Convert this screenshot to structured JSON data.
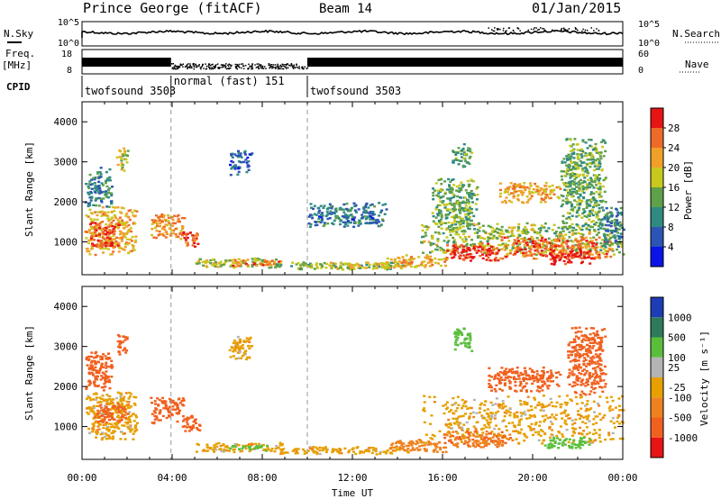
{
  "header": {
    "station": "Prince George (fitACF)",
    "beam": "Beam 14",
    "date": "01/Jan/2015"
  },
  "left_labels": {
    "nsky": "N.Sky",
    "freq_line1": "Freq.",
    "freq_line2": "[MHz]",
    "cpid": "CPID"
  },
  "right_labels": {
    "nsearch": "N.Search",
    "nave": "Nave"
  },
  "noise_panel": {
    "left_ticks": [
      "10^5",
      "10^0"
    ],
    "right_ticks": [
      "10^5",
      "10^0"
    ]
  },
  "freq_panel": {
    "left_ticks": [
      "18",
      "8"
    ],
    "right_ticks": [
      "60",
      "0"
    ]
  },
  "cpid_segments": [
    {
      "label": "twofsound 3503",
      "start_h": 0.0,
      "end_h": 3.95
    },
    {
      "label": "normal (fast) 151",
      "start_h": 3.95,
      "end_h": 10.0
    },
    {
      "label": "twofsound 3503",
      "start_h": 10.0,
      "end_h": 24.0
    }
  ],
  "power_colorbar": {
    "label": "Power [dB]",
    "ticks": [
      "4",
      "8",
      "12",
      "16",
      "20",
      "24",
      "28"
    ],
    "colors": [
      "#0a14e6",
      "#2c54b4",
      "#2f8a82",
      "#5fa04a",
      "#c8c81e",
      "#f0a028",
      "#ee6a28",
      "#e61414"
    ]
  },
  "velocity_colorbar": {
    "label": "Velocity [m s⁻¹]",
    "ticks": [
      "1000",
      "500",
      "100",
      "25",
      "-25",
      "-100",
      "-500",
      "-1000"
    ],
    "colors": [
      "#1e3cb4",
      "#2e7a5a",
      "#5abe3c",
      "#b4b4b4",
      "#e6a000",
      "#ee8220",
      "#f0601e",
      "#e61414"
    ]
  },
  "axes": {
    "ylabel": "Slant Range [km]",
    "yticks": [
      "1000",
      "2000",
      "3000",
      "4000"
    ],
    "xticks": [
      "00:00",
      "04:00",
      "08:00",
      "12:00",
      "16:00",
      "20:00",
      "00:00"
    ],
    "xlabel": "Time UT"
  },
  "chart_data": {
    "type": "heatmap",
    "xlabel": "Time UT",
    "ylabel": "Slant Range [km]",
    "x_range_hours": [
      0,
      24
    ],
    "y_range_km": [
      180,
      4500
    ],
    "x_tick_hours": [
      0,
      4,
      8,
      12,
      16,
      20,
      24
    ],
    "y_ticks_km": [
      1000,
      2000,
      3000,
      4000
    ],
    "dashed_lines_hours": [
      3.95,
      10.0
    ],
    "power_scale_db": [
      0,
      30
    ],
    "velocity_scale": [
      -1000,
      -500,
      -100,
      -25,
      25,
      100,
      500,
      1000
    ],
    "power_regions": [
      {
        "t0": 0.1,
        "t1": 2.4,
        "r0": 700,
        "r1": 1900,
        "level": 20
      },
      {
        "t0": 0.3,
        "t1": 1.6,
        "r0": 850,
        "r1": 1500,
        "level": 27
      },
      {
        "t0": 0.1,
        "t1": 1.3,
        "r0": 1900,
        "r1": 2900,
        "level": 9
      },
      {
        "t0": 1.5,
        "t1": 2.0,
        "r0": 2800,
        "r1": 3400,
        "level": 18
      },
      {
        "t0": 3.0,
        "t1": 4.5,
        "r0": 1100,
        "r1": 1750,
        "level": 22
      },
      {
        "t0": 4.4,
        "t1": 5.2,
        "r0": 900,
        "r1": 1300,
        "level": 25
      },
      {
        "t0": 5.0,
        "t1": 9.0,
        "r0": 380,
        "r1": 620,
        "level": 16
      },
      {
        "t0": 6.5,
        "t1": 9.0,
        "r0": 420,
        "r1": 560,
        "level": 24
      },
      {
        "t0": 8.5,
        "t1": 14.5,
        "r0": 330,
        "r1": 520,
        "level": 14
      },
      {
        "t0": 10.0,
        "t1": 14.5,
        "r0": 360,
        "r1": 520,
        "level": 18
      },
      {
        "t0": 13.5,
        "t1": 16.2,
        "r0": 380,
        "r1": 700,
        "level": 20
      },
      {
        "t0": 15.0,
        "t1": 24.0,
        "r0": 700,
        "r1": 1500,
        "level": 15
      },
      {
        "t0": 16.0,
        "t1": 18.5,
        "r0": 550,
        "r1": 1000,
        "level": 27
      },
      {
        "t0": 18.5,
        "t1": 23.5,
        "r0": 600,
        "r1": 1150,
        "level": 24
      },
      {
        "t0": 20.5,
        "t1": 22.5,
        "r0": 450,
        "r1": 800,
        "level": 28
      },
      {
        "t0": 15.5,
        "t1": 17.5,
        "r0": 1300,
        "r1": 2600,
        "level": 13
      },
      {
        "t0": 18.5,
        "t1": 21.2,
        "r0": 2000,
        "r1": 2500,
        "level": 20
      },
      {
        "t0": 16.4,
        "t1": 17.3,
        "r0": 2900,
        "r1": 3500,
        "level": 12
      },
      {
        "t0": 21.2,
        "t1": 23.2,
        "r0": 1300,
        "r1": 3600,
        "level": 13
      },
      {
        "t0": 23.0,
        "t1": 24.0,
        "r0": 900,
        "r1": 1900,
        "level": 9
      },
      {
        "t0": 10.0,
        "t1": 13.5,
        "r0": 1400,
        "r1": 2000,
        "level": 8
      },
      {
        "t0": 6.5,
        "t1": 7.5,
        "r0": 2700,
        "r1": 3300,
        "level": 6
      }
    ],
    "velocity_regions": [
      {
        "t0": 0.1,
        "t1": 2.4,
        "r0": 700,
        "r1": 1900,
        "level": 0
      },
      {
        "t0": 0.5,
        "t1": 2.0,
        "r0": 1100,
        "r1": 1600,
        "level": -120
      },
      {
        "t0": 0.1,
        "t1": 1.3,
        "r0": 1900,
        "r1": 2900,
        "level": -150
      },
      {
        "t0": 1.5,
        "t1": 2.0,
        "r0": 2800,
        "r1": 3400,
        "level": -300
      },
      {
        "t0": 3.0,
        "t1": 4.5,
        "r0": 1100,
        "r1": 1750,
        "level": -400
      },
      {
        "t0": 4.4,
        "t1": 5.2,
        "r0": 900,
        "r1": 1300,
        "level": -200
      },
      {
        "t0": 5.0,
        "t1": 9.0,
        "r0": 380,
        "r1": 620,
        "level": 0
      },
      {
        "t0": 6.5,
        "t1": 8.2,
        "r0": 420,
        "r1": 560,
        "level": 150
      },
      {
        "t0": 8.5,
        "t1": 14.5,
        "r0": 330,
        "r1": 520,
        "level": 0
      },
      {
        "t0": 13.5,
        "t1": 16.2,
        "r0": 380,
        "r1": 700,
        "level": -60
      },
      {
        "t0": 15.0,
        "t1": 24.0,
        "r0": 600,
        "r1": 1800,
        "level": 0
      },
      {
        "t0": 16.0,
        "t1": 19.0,
        "r0": 500,
        "r1": 900,
        "level": -90
      },
      {
        "t0": 20.5,
        "t1": 22.5,
        "r0": 450,
        "r1": 750,
        "level": 200
      },
      {
        "t0": 18.0,
        "t1": 21.2,
        "r0": 1900,
        "r1": 2500,
        "level": -400
      },
      {
        "t0": 16.4,
        "t1": 17.3,
        "r0": 2900,
        "r1": 3500,
        "level": 300
      },
      {
        "t0": 21.5,
        "t1": 23.2,
        "r0": 1800,
        "r1": 3500,
        "level": -150
      },
      {
        "t0": 6.5,
        "t1": 7.5,
        "r0": 2700,
        "r1": 3300,
        "level": 0
      }
    ]
  }
}
